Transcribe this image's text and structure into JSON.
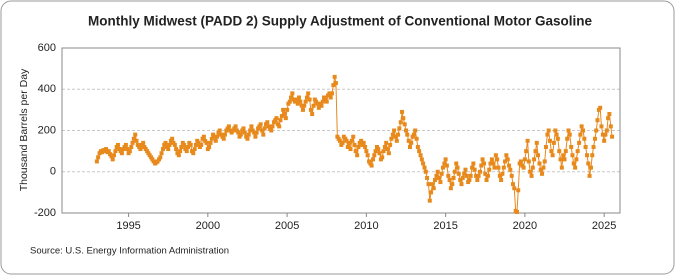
{
  "chart_data": {
    "type": "line",
    "title": "Monthly Midwest (PADD 2) Supply Adjustment of Conventional Motor Gasoline",
    "y_label": "Thousand Barrels per Day",
    "source": "Source: U.S. Energy Information Administration",
    "xlim": [
      1990.8,
      2026
    ],
    "xticks": [
      1995,
      2000,
      2005,
      2010,
      2015,
      2020,
      2025
    ],
    "ylim": [
      -200,
      600
    ],
    "yticks": [
      -200,
      0,
      200,
      400,
      600
    ],
    "grid": true,
    "x": [
      1993.0,
      1993.08,
      1993.17,
      1993.25,
      1993.33,
      1993.42,
      1993.5,
      1993.58,
      1993.67,
      1993.75,
      1993.83,
      1993.92,
      1994.0,
      1994.08,
      1994.17,
      1994.25,
      1994.33,
      1994.42,
      1994.5,
      1994.58,
      1994.67,
      1994.75,
      1994.83,
      1994.92,
      1995.0,
      1995.08,
      1995.17,
      1995.25,
      1995.33,
      1995.42,
      1995.5,
      1995.58,
      1995.67,
      1995.75,
      1995.83,
      1995.92,
      1996.0,
      1996.08,
      1996.17,
      1996.25,
      1996.33,
      1996.42,
      1996.5,
      1996.58,
      1996.67,
      1996.75,
      1996.83,
      1996.92,
      1997.0,
      1997.08,
      1997.17,
      1997.25,
      1997.33,
      1997.42,
      1997.5,
      1997.58,
      1997.67,
      1997.75,
      1997.83,
      1997.92,
      1998.0,
      1998.08,
      1998.17,
      1998.25,
      1998.33,
      1998.42,
      1998.5,
      1998.58,
      1998.67,
      1998.75,
      1998.83,
      1998.92,
      1999.0,
      1999.08,
      1999.17,
      1999.25,
      1999.33,
      1999.42,
      1999.5,
      1999.58,
      1999.67,
      1999.75,
      1999.83,
      1999.92,
      2000.0,
      2000.08,
      2000.17,
      2000.25,
      2000.33,
      2000.42,
      2000.5,
      2000.58,
      2000.67,
      2000.75,
      2000.83,
      2000.92,
      2001.0,
      2001.08,
      2001.17,
      2001.25,
      2001.33,
      2001.42,
      2001.5,
      2001.58,
      2001.67,
      2001.75,
      2001.83,
      2001.92,
      2002.0,
      2002.08,
      2002.17,
      2002.25,
      2002.33,
      2002.42,
      2002.5,
      2002.58,
      2002.67,
      2002.75,
      2002.83,
      2002.92,
      2003.0,
      2003.08,
      2003.17,
      2003.25,
      2003.33,
      2003.42,
      2003.5,
      2003.58,
      2003.67,
      2003.75,
      2003.83,
      2003.92,
      2004.0,
      2004.08,
      2004.17,
      2004.25,
      2004.33,
      2004.42,
      2004.5,
      2004.58,
      2004.67,
      2004.75,
      2004.83,
      2004.92,
      2005.0,
      2005.08,
      2005.17,
      2005.25,
      2005.33,
      2005.42,
      2005.5,
      2005.58,
      2005.67,
      2005.75,
      2005.83,
      2005.92,
      2006.0,
      2006.08,
      2006.17,
      2006.25,
      2006.33,
      2006.42,
      2006.5,
      2006.58,
      2006.67,
      2006.75,
      2006.83,
      2006.92,
      2007.0,
      2007.08,
      2007.17,
      2007.25,
      2007.33,
      2007.42,
      2007.5,
      2007.58,
      2007.67,
      2007.75,
      2007.83,
      2007.92,
      2008.0,
      2008.08,
      2008.17,
      2008.25,
      2008.33,
      2008.42,
      2008.5,
      2008.58,
      2008.67,
      2008.75,
      2008.83,
      2008.92,
      2009.0,
      2009.08,
      2009.17,
      2009.25,
      2009.33,
      2009.42,
      2009.5,
      2009.58,
      2009.67,
      2009.75,
      2009.83,
      2009.92,
      2010.0,
      2010.08,
      2010.17,
      2010.25,
      2010.33,
      2010.42,
      2010.5,
      2010.58,
      2010.67,
      2010.75,
      2010.83,
      2010.92,
      2011.0,
      2011.08,
      2011.17,
      2011.25,
      2011.33,
      2011.42,
      2011.5,
      2011.58,
      2011.67,
      2011.75,
      2011.83,
      2011.92,
      2012.0,
      2012.08,
      2012.17,
      2012.25,
      2012.33,
      2012.42,
      2012.5,
      2012.58,
      2012.67,
      2012.75,
      2012.83,
      2012.92,
      2013.0,
      2013.08,
      2013.17,
      2013.25,
      2013.33,
      2013.42,
      2013.5,
      2013.58,
      2013.67,
      2013.75,
      2013.83,
      2013.92,
      2014.0,
      2014.08,
      2014.17,
      2014.25,
      2014.33,
      2014.42,
      2014.5,
      2014.58,
      2014.67,
      2014.75,
      2014.83,
      2014.92,
      2015.0,
      2015.08,
      2015.17,
      2015.25,
      2015.33,
      2015.42,
      2015.5,
      2015.58,
      2015.67,
      2015.75,
      2015.83,
      2015.92,
      2016.0,
      2016.08,
      2016.17,
      2016.25,
      2016.33,
      2016.42,
      2016.5,
      2016.58,
      2016.67,
      2016.75,
      2016.83,
      2016.92,
      2017.0,
      2017.08,
      2017.17,
      2017.25,
      2017.33,
      2017.42,
      2017.5,
      2017.58,
      2017.67,
      2017.75,
      2017.83,
      2017.92,
      2018.0,
      2018.08,
      2018.17,
      2018.25,
      2018.33,
      2018.42,
      2018.5,
      2018.58,
      2018.67,
      2018.75,
      2018.83,
      2018.92,
      2019.0,
      2019.08,
      2019.17,
      2019.25,
      2019.33,
      2019.42,
      2019.5,
      2019.58,
      2019.67,
      2019.75,
      2019.83,
      2019.92,
      2020.0,
      2020.08,
      2020.17,
      2020.25,
      2020.33,
      2020.42,
      2020.5,
      2020.58,
      2020.67,
      2020.75,
      2020.83,
      2020.92,
      2021.0,
      2021.08,
      2021.17,
      2021.25,
      2021.33,
      2021.42,
      2021.5,
      2021.58,
      2021.67,
      2021.75,
      2021.83,
      2021.92,
      2022.0,
      2022.08,
      2022.17,
      2022.25,
      2022.33,
      2022.42,
      2022.5,
      2022.58,
      2022.67,
      2022.75,
      2022.83,
      2022.92,
      2023.0,
      2023.08,
      2023.17,
      2023.25,
      2023.33,
      2023.42,
      2023.5,
      2023.58,
      2023.67,
      2023.75,
      2023.83,
      2023.92,
      2024.0,
      2024.08,
      2024.17,
      2024.25,
      2024.33,
      2024.42,
      2024.5,
      2024.58,
      2024.67,
      2024.75,
      2024.83,
      2024.92,
      2025.0,
      2025.08,
      2025.17,
      2025.25,
      2025.33,
      2025.42,
      2025.5
    ],
    "series": [
      {
        "color": "#e8891c",
        "values": [
          50,
          70,
          90,
          100,
          95,
          105,
          100,
          110,
          95,
          100,
          85,
          75,
          60,
          80,
          100,
          120,
          130,
          110,
          100,
          90,
          110,
          120,
          130,
          110,
          90,
          100,
          120,
          140,
          160,
          180,
          150,
          130,
          120,
          110,
          130,
          140,
          120,
          110,
          100,
          90,
          80,
          70,
          60,
          50,
          40,
          45,
          50,
          60,
          70,
          90,
          110,
          130,
          140,
          120,
          110,
          130,
          150,
          160,
          140,
          130,
          110,
          90,
          80,
          100,
          120,
          140,
          130,
          110,
          100,
          120,
          140,
          130,
          100,
          90,
          110,
          130,
          150,
          140,
          120,
          130,
          160,
          170,
          150,
          140,
          110,
          120,
          140,
          160,
          180,
          170,
          150,
          170,
          190,
          200,
          180,
          170,
          160,
          180,
          200,
          210,
          220,
          200,
          190,
          200,
          210,
          220,
          200,
          190,
          170,
          180,
          200,
          210,
          190,
          170,
          160,
          180,
          200,
          220,
          200,
          190,
          170,
          190,
          210,
          220,
          230,
          200,
          180,
          210,
          230,
          240,
          220,
          210,
          200,
          220,
          240,
          250,
          260,
          230,
          220,
          250,
          270,
          300,
          280,
          260,
          300,
          330,
          340,
          360,
          380,
          350,
          340,
          350,
          330,
          360,
          340,
          320,
          300,
          320,
          340,
          360,
          380,
          350,
          300,
          280,
          320,
          350,
          340,
          330,
          310,
          330,
          320,
          340,
          360,
          350,
          340,
          370,
          380,
          360,
          380,
          420,
          460,
          430,
          170,
          160,
          150,
          130,
          140,
          170,
          160,
          150,
          120,
          140,
          110,
          150,
          170,
          130,
          100,
          80,
          120,
          140,
          150,
          130,
          140,
          120,
          100,
          80,
          50,
          40,
          30,
          60,
          80,
          100,
          120,
          110,
          90,
          60,
          70,
          100,
          120,
          140,
          110,
          90,
          130,
          160,
          180,
          200,
          170,
          150,
          180,
          210,
          240,
          290,
          260,
          230,
          200,
          180,
          150,
          120,
          140,
          170,
          180,
          200,
          160,
          120,
          100,
          80,
          60,
          40,
          20,
          0,
          -30,
          -60,
          -140,
          -100,
          -60,
          -80,
          -40,
          -20,
          0,
          -30,
          -50,
          -10,
          20,
          40,
          60,
          30,
          -20,
          -40,
          -80,
          -60,
          -30,
          0,
          40,
          20,
          -10,
          -40,
          -60,
          -30,
          -10,
          10,
          -20,
          -50,
          -40,
          -20,
          20,
          40,
          10,
          -20,
          -40,
          -20,
          0,
          30,
          60,
          40,
          -10,
          -40,
          -20,
          10,
          40,
          60,
          40,
          20,
          80,
          60,
          20,
          -20,
          -40,
          -10,
          20,
          50,
          80,
          60,
          30,
          10,
          -20,
          -60,
          -80,
          -190,
          -195,
          -90,
          40,
          50,
          30,
          20,
          60,
          100,
          150,
          50,
          0,
          -20,
          20,
          60,
          100,
          140,
          80,
          40,
          10,
          -10,
          20,
          50,
          120,
          180,
          200,
          150,
          100,
          80,
          140,
          200,
          180,
          160,
          100,
          60,
          20,
          80,
          60,
          100,
          160,
          200,
          180,
          120,
          80,
          40,
          20,
          60,
          100,
          140,
          180,
          220,
          200,
          160,
          120,
          80,
          40,
          -20,
          20,
          80,
          120,
          160,
          200,
          250,
          300,
          310,
          220,
          180,
          150,
          180,
          200,
          260,
          280,
          220,
          170
        ]
      }
    ]
  }
}
